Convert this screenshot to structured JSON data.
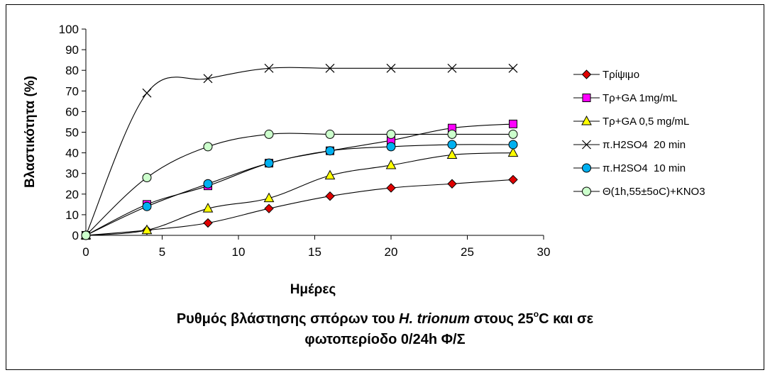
{
  "chart_data": {
    "type": "line",
    "xlabel": "Ημέρες",
    "ylabel": "Βλαστικότητα (%)",
    "xlim": [
      0,
      30
    ],
    "ylim": [
      0,
      100
    ],
    "xticks": [
      "0",
      "5",
      "10",
      "15",
      "20",
      "25",
      "30"
    ],
    "yticks": [
      "0",
      "10",
      "20",
      "30",
      "40",
      "50",
      "60",
      "70",
      "80",
      "90",
      "100"
    ],
    "grid": false,
    "legend": "right",
    "series": [
      {
        "name": "Τρίψιμο",
        "marker": "diamond",
        "color": "#e00000",
        "x": [
          0,
          4,
          8,
          12,
          16,
          20,
          24,
          28
        ],
        "y": [
          0,
          2.5,
          6,
          13,
          19,
          23,
          25,
          27
        ]
      },
      {
        "name": "Τρ+GA 1mg/mL",
        "marker": "square",
        "color": "#ff00ff",
        "x": [
          0,
          4,
          8,
          12,
          16,
          20,
          24,
          28
        ],
        "y": [
          0,
          15,
          24,
          35,
          41,
          46,
          52,
          54
        ]
      },
      {
        "name": "Τρ+GA 0,5 mg/mL",
        "marker": "triangle",
        "color": "#ffff00",
        "x": [
          0,
          4,
          8,
          12,
          16,
          20,
          24,
          28
        ],
        "y": [
          0,
          2.5,
          13,
          18,
          29,
          34,
          39,
          40
        ]
      },
      {
        "name": "π.H2SO4  20 min",
        "marker": "x",
        "color": "#000000",
        "x": [
          0,
          4,
          8,
          12,
          16,
          20,
          24,
          28
        ],
        "y": [
          0,
          69,
          76,
          81,
          81,
          81,
          81,
          81
        ]
      },
      {
        "name": "π.H2SO4  10 min",
        "marker": "circle",
        "color": "#00b0f0",
        "x": [
          0,
          4,
          8,
          12,
          16,
          20,
          24,
          28
        ],
        "y": [
          0,
          14,
          25,
          35,
          41,
          43,
          44,
          44
        ]
      },
      {
        "name": "Θ(1h,55±5oC)+KNO3",
        "marker": "circle",
        "color": "#ccffcc",
        "x": [
          0,
          4,
          8,
          12,
          16,
          20,
          24,
          28
        ],
        "y": [
          0,
          28,
          43,
          49,
          49,
          49,
          49,
          49
        ]
      }
    ]
  },
  "caption": {
    "line1_prefix": "Ρυθμός βλάστησης σπόρων του ",
    "line1_italic": "H. trionum",
    "line1_middle": " στους 25",
    "line1_sup": "o",
    "line1_suffix": "C και σε",
    "line2": "φωτοπερίοδο 0/24h Φ/Σ"
  }
}
